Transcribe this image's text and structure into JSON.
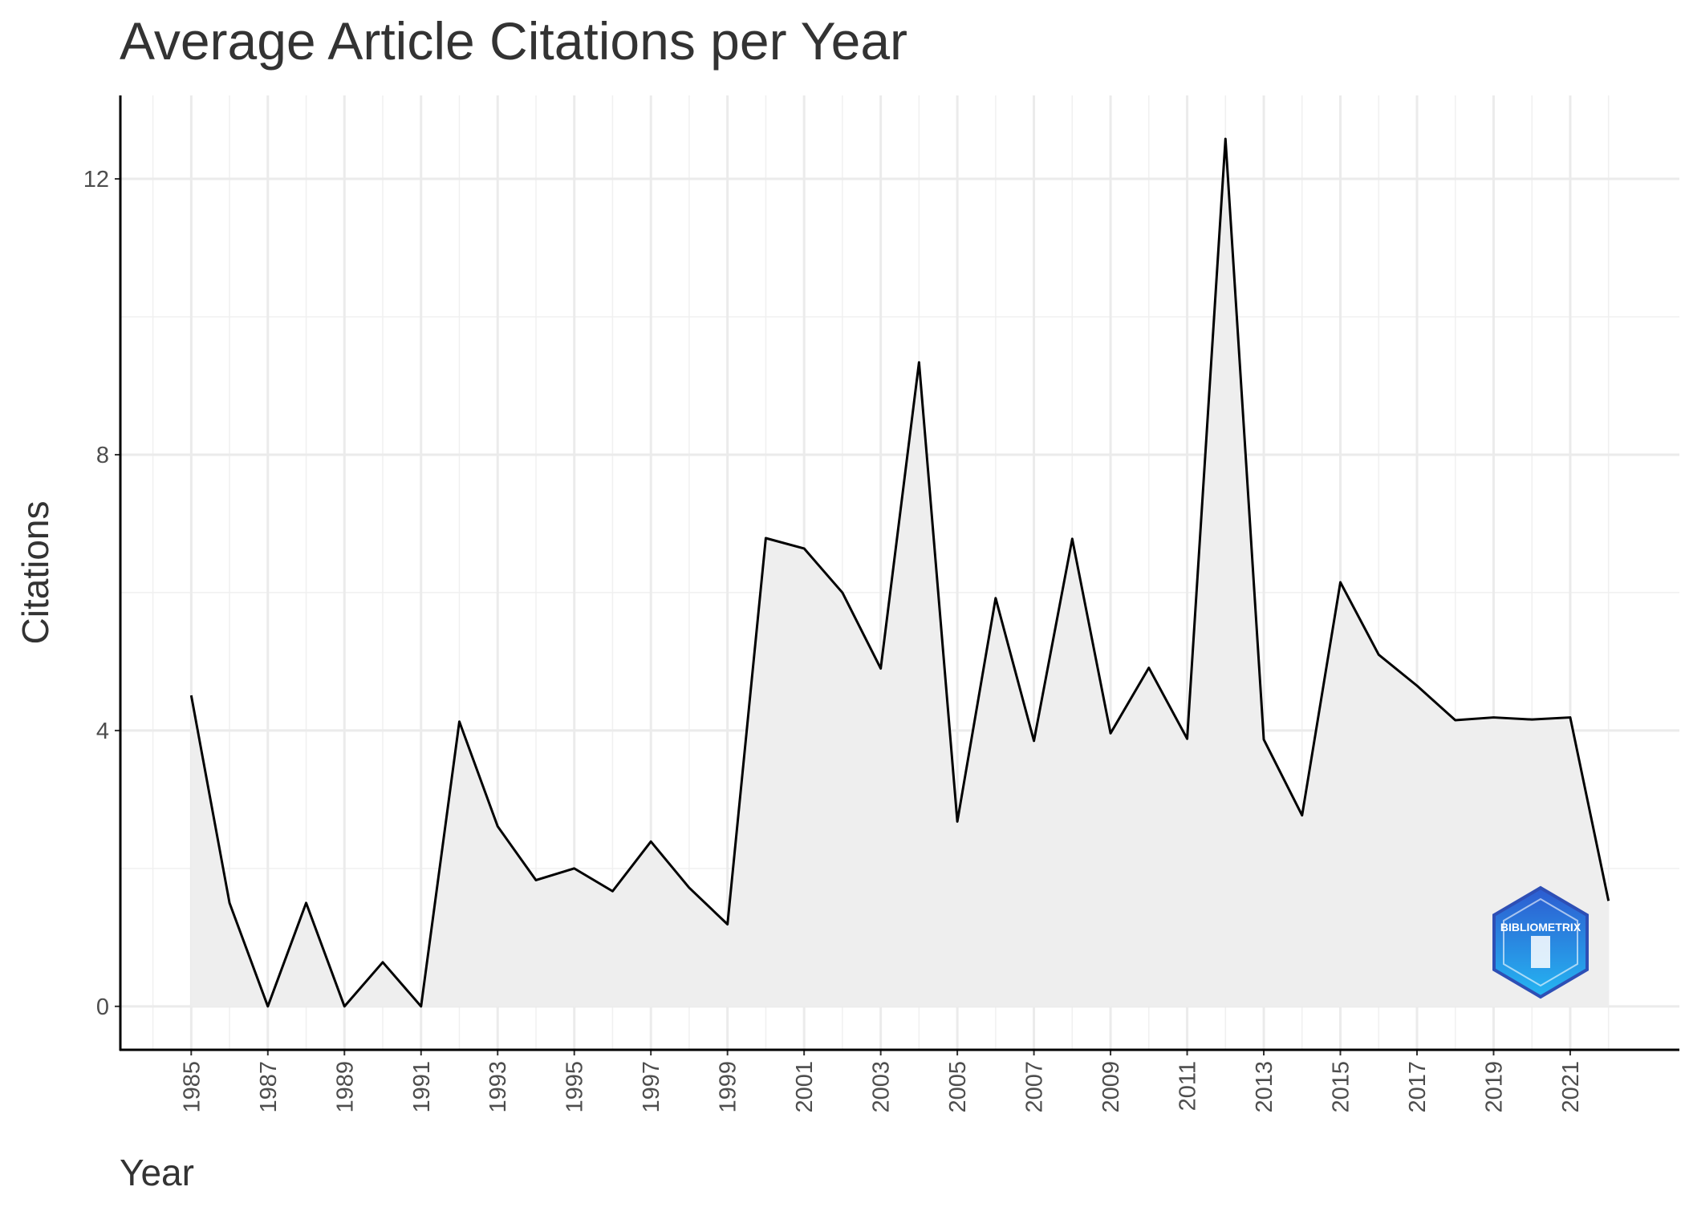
{
  "chart_data": {
    "type": "area",
    "title": "Average Article Citations per Year",
    "x_label": "Year",
    "y_label": "Citations",
    "x": [
      1985,
      1986,
      1987,
      1988,
      1989,
      1990,
      1991,
      1992,
      1993,
      1994,
      1995,
      1996,
      1997,
      1998,
      1999,
      2000,
      2001,
      2002,
      2003,
      2004,
      2005,
      2006,
      2007,
      2008,
      2009,
      2010,
      2011,
      2012,
      2013,
      2014,
      2015,
      2016,
      2017,
      2018,
      2019,
      2020,
      2021,
      2022
    ],
    "values": [
      4.51,
      1.5,
      0,
      1.5,
      0,
      0.64,
      0,
      4.13,
      2.61,
      1.83,
      2.0,
      1.67,
      2.39,
      1.72,
      1.19,
      6.79,
      6.64,
      6.0,
      4.9,
      9.34,
      2.68,
      5.92,
      3.85,
      6.78,
      3.96,
      4.91,
      3.88,
      12.58,
      3.87,
      2.77,
      6.15,
      5.1,
      4.65,
      4.15,
      4.19,
      4.16,
      4.19,
      1.53
    ],
    "color": "#000000",
    "fill": "#eeeeee",
    "xlim": [
      1983.15,
      2023.85
    ],
    "ylim": [
      -0.63,
      13.21
    ],
    "xticks": [
      1985,
      1987,
      1989,
      1991,
      1993,
      1995,
      1997,
      1999,
      2001,
      2003,
      2005,
      2007,
      2009,
      2011,
      2013,
      2015,
      2017,
      2019,
      2021
    ],
    "yticks": [
      0,
      4,
      8,
      12
    ],
    "grid": true,
    "logo_text": "BIBLIOMETRIX"
  }
}
